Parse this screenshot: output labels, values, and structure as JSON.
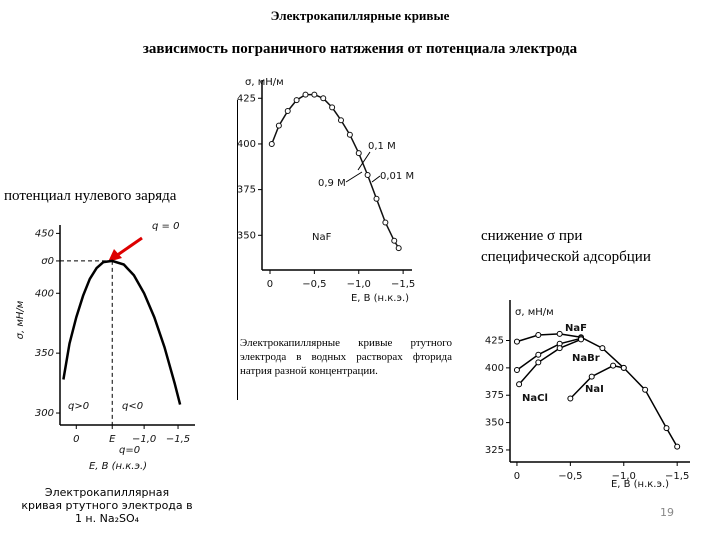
{
  "header": {
    "title": "Электрокапиллярные кривые",
    "subtitle": "зависимость пограничного натяжения от потенциала электрода"
  },
  "texts": {
    "pzc": "потенциал нулевого заряда",
    "adsorption": [
      "снижение σ при",
      "специфической адсорбции"
    ],
    "caption_middle": "Электрокапиллярные кривые ртутного электрода в водных растворах фторида натрия разной концентрации.",
    "caption_left": [
      "Электрокапиллярная",
      "кривая ртутного электрода в",
      "1 н. Na₂SO₄"
    ],
    "page_number": "19"
  },
  "chart_data": [
    {
      "type": "line",
      "y_label": "σ, мН/м",
      "x_label": "E, B (н.к.э.)",
      "xlim": [
        0.09,
        -1.6
      ],
      "ylim": [
        331,
        435
      ],
      "xticks": [
        0,
        {
          "value": -0.5,
          "label": "−0,5"
        },
        {
          "value": -1.0,
          "label": "−1,0"
        },
        {
          "value": -1.5,
          "label": "−1,5"
        }
      ],
      "yticks": [
        350,
        375,
        400,
        425
      ],
      "annotations": [
        "0,1 M",
        "0,01 M",
        "0,9 M",
        "NaF"
      ],
      "series": [
        {
          "color": "#111",
          "x": [
            -0.02,
            -0.1,
            -0.2,
            -0.3,
            -0.4,
            -0.5,
            -0.6,
            -0.7,
            -0.8,
            -0.9,
            -1.0,
            -1.1,
            -1.2,
            -1.3,
            -1.4,
            -1.45
          ],
          "values": [
            400,
            410,
            418,
            424,
            427,
            427,
            425,
            420,
            413,
            405,
            395,
            383,
            370,
            357,
            347,
            343
          ]
        }
      ]
    },
    {
      "type": "line",
      "y_label": "σ, мН/м",
      "x_label": "E, B (н.к.э.)",
      "xlim": [
        0.24,
        -1.75
      ],
      "ylim": [
        290,
        457
      ],
      "xticks": [
        0,
        {
          "value": -0.53,
          "label": "E"
        },
        {
          "value": -1.0,
          "label": "−1,0"
        },
        {
          "value": -1.5,
          "label": "−1,5"
        }
      ],
      "yticks": [
        300,
        350,
        400,
        {
          "value": 427,
          "label": "σ0"
        },
        450
      ],
      "annotations": [
        "q = 0",
        "q>0",
        "q<0",
        "q=0"
      ],
      "series": [
        {
          "color": "#000",
          "x": [
            0.19,
            0.1,
            0,
            -0.1,
            -0.2,
            -0.3,
            -0.4,
            -0.53,
            -0.7,
            -0.85,
            -1.0,
            -1.15,
            -1.3,
            -1.45,
            -1.53
          ],
          "values": [
            328,
            358,
            380,
            398,
            412,
            421,
            426,
            427,
            424,
            415,
            400,
            380,
            355,
            325,
            307
          ]
        }
      ]
    },
    {
      "type": "line",
      "y_label": "σ, мН/м",
      "x_label": "E, B (н.к.э.)",
      "xlim": [
        0.065,
        -1.62
      ],
      "ylim": [
        314,
        462
      ],
      "xticks": [
        0,
        {
          "value": -0.5,
          "label": "−0,5"
        },
        {
          "value": -1.0,
          "label": "−1,0"
        },
        {
          "value": -1.5,
          "label": "−1,5"
        }
      ],
      "yticks": [
        325,
        350,
        375,
        400,
        425
      ],
      "annotations": [],
      "series": [
        {
          "name": "NaF",
          "color": "#000",
          "x": [
            0,
            -0.2,
            -0.4,
            -0.6,
            -0.8,
            -1.0,
            -1.2,
            -1.4,
            -1.5
          ],
          "values": [
            424,
            430,
            431,
            428,
            418,
            400,
            380,
            345,
            328
          ]
        },
        {
          "name": "NaBr",
          "color": "#000",
          "x": [
            0,
            -0.2,
            -0.4,
            -0.6
          ],
          "values": [
            398,
            412,
            422,
            427
          ]
        },
        {
          "name": "NaCl",
          "color": "#000",
          "x": [
            -0.02,
            -0.2,
            -0.4,
            -0.6
          ],
          "values": [
            385,
            405,
            418,
            426
          ]
        },
        {
          "name": "NaI",
          "color": "#000",
          "x": [
            -0.5,
            -0.7,
            -0.9,
            -1.0
          ],
          "values": [
            372,
            392,
            402,
            400
          ]
        }
      ]
    }
  ]
}
